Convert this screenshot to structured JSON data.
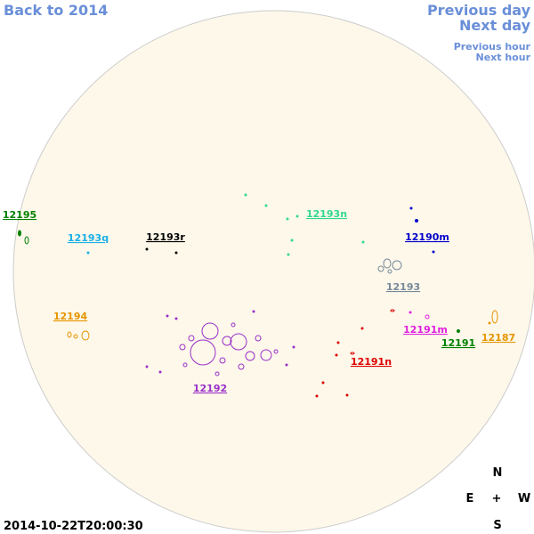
{
  "nav": {
    "back": "Back to 2014",
    "previous_day": "Previous day",
    "next_day": "Next day",
    "previous_hour": "Previous hour",
    "next_hour": "Next hour"
  },
  "timestamp": "2014-10-22T20:00:30",
  "compass": {
    "north": "N",
    "east": "E",
    "center": "+",
    "west": "W",
    "south": "S"
  },
  "regions": [
    {
      "label": "12195",
      "color": "#008000"
    },
    {
      "label": "12193q",
      "color": "#1ab0e8"
    },
    {
      "label": "12193r",
      "color": "#000000"
    },
    {
      "label": "12193n",
      "color": "#30d890"
    },
    {
      "label": "12190m",
      "color": "#0000cc"
    },
    {
      "label": "12193",
      "color": "#778899"
    },
    {
      "label": "12194",
      "color": "#e69500"
    },
    {
      "label": "12191m",
      "color": "#e020e0"
    },
    {
      "label": "12191",
      "color": "#008000"
    },
    {
      "label": "12187",
      "color": "#e69500"
    },
    {
      "label": "12191n",
      "color": "#dd0000"
    },
    {
      "label": "12192",
      "color": "#9a30c8"
    }
  ]
}
